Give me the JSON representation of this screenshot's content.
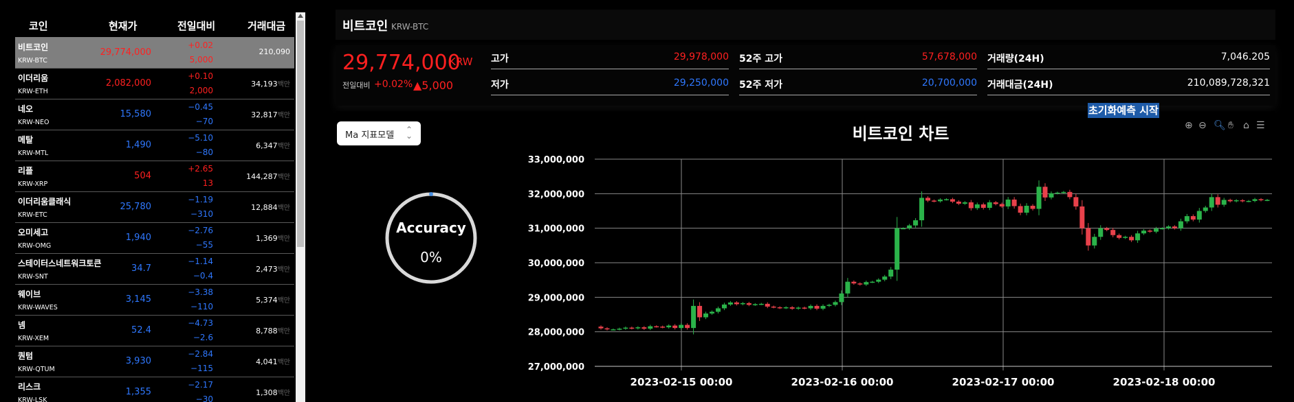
{
  "coin_list": {
    "headers": [
      "코인",
      "현재가",
      "전일대비",
      "거래대금"
    ],
    "volume_unit": "백만",
    "rows": [
      {
        "name": "비트코인",
        "code": "KRW-BTC",
        "price": "29,774,000",
        "pct": "+0.02",
        "chg": "5,000",
        "vol": "210,090",
        "dir": "up",
        "selected": true,
        "unit": ""
      },
      {
        "name": "이더리움",
        "code": "KRW-ETH",
        "price": "2,082,000",
        "pct": "+0.10",
        "chg": "2,000",
        "vol": "34,193",
        "dir": "up",
        "unit": "백만"
      },
      {
        "name": "네오",
        "code": "KRW-NEO",
        "price": "15,580",
        "pct": "−0.45",
        "chg": "−70",
        "vol": "32,817",
        "dir": "dn",
        "unit": "백만"
      },
      {
        "name": "메탈",
        "code": "KRW-MTL",
        "price": "1,490",
        "pct": "−5.10",
        "chg": "−80",
        "vol": "6,347",
        "dir": "dn",
        "unit": "백만"
      },
      {
        "name": "리플",
        "code": "KRW-XRP",
        "price": "504",
        "pct": "+2.65",
        "chg": "13",
        "vol": "144,287",
        "dir": "up",
        "unit": "백만"
      },
      {
        "name": "이더리움클래식",
        "code": "KRW-ETC",
        "price": "25,780",
        "pct": "−1.19",
        "chg": "−310",
        "vol": "12,884",
        "dir": "dn",
        "unit": "백만"
      },
      {
        "name": "오미세고",
        "code": "KRW-OMG",
        "price": "1,940",
        "pct": "−2.76",
        "chg": "−55",
        "vol": "1,369",
        "dir": "dn",
        "unit": "백만"
      },
      {
        "name": "스테이터스네트워크토큰",
        "code": "KRW-SNT",
        "price": "34.7",
        "pct": "−1.14",
        "chg": "−0.4",
        "vol": "2,473",
        "dir": "dn",
        "unit": "백만"
      },
      {
        "name": "웨이브",
        "code": "KRW-WAVES",
        "price": "3,145",
        "pct": "−3.38",
        "chg": "−110",
        "vol": "5,374",
        "dir": "dn",
        "unit": "백만"
      },
      {
        "name": "넴",
        "code": "KRW-XEM",
        "price": "52.4",
        "pct": "−4.73",
        "chg": "−2.6",
        "vol": "8,788",
        "dir": "dn",
        "unit": "백만"
      },
      {
        "name": "퀀텀",
        "code": "KRW-QTUM",
        "price": "3,930",
        "pct": "−2.84",
        "chg": "−115",
        "vol": "4,041",
        "dir": "dn",
        "unit": "백만"
      },
      {
        "name": "리스크",
        "code": "KRW-LSK",
        "price": "1,355",
        "pct": "−2.17",
        "chg": "−30",
        "vol": "1,308",
        "dir": "dn",
        "unit": "백만"
      }
    ]
  },
  "header": {
    "title": "비트코인",
    "subtitle": "KRW-BTC"
  },
  "summary": {
    "price": "29,774,000",
    "unit": "KRW",
    "delta_label": "전일대비",
    "delta_pct": "+0.02%",
    "delta_val": "▲5,000",
    "high_label": "고가",
    "high": "29,978,000",
    "low_label": "저가",
    "low": "29,250,000",
    "high52_label": "52주 고가",
    "high52": "57,678,000",
    "low52_label": "52주 저가",
    "low52": "20,700,000",
    "vol_label": "거래량(24H)",
    "vol": "7,046.205",
    "amt_label": "거래대금(24H)",
    "amt": "210,089,728,321"
  },
  "init_button": {
    "part1": "초기화",
    "part2": "예측 시작"
  },
  "ma_select": {
    "value": "Ma 지표모델"
  },
  "accuracy": {
    "title": "Accuracy",
    "value": "0%",
    "fraction": 0
  },
  "colors": {
    "up": "#ff2020",
    "down": "#2f78ff",
    "candle_up": "#2bb34a",
    "candle_down": "#e8414b"
  },
  "chart_data": {
    "type": "candlestick",
    "title": "비트코인 차트",
    "ylim": [
      27000000,
      33000000
    ],
    "yticks": [
      "27,000,000",
      "28,000,000",
      "29,000,000",
      "30,000,000",
      "31,000,000",
      "32,000,000",
      "33,000,000"
    ],
    "xticks": [
      "2023-02-15 00:00",
      "2023-02-16 00:00",
      "2023-02-17 00:00",
      "2023-02-18 00:00"
    ],
    "grid": true,
    "close": [
      28100000,
      28070000,
      28070000,
      28090000,
      28120000,
      28100000,
      28130000,
      28090000,
      28160000,
      28150000,
      28130000,
      28180000,
      28110000,
      28200000,
      28110000,
      28750000,
      28420000,
      28530000,
      28580000,
      28680000,
      28790000,
      28850000,
      28800000,
      28830000,
      28780000,
      28800000,
      28810000,
      28730000,
      28710000,
      28690000,
      28710000,
      28670000,
      28700000,
      28680000,
      28750000,
      28670000,
      28750000,
      28780000,
      28860000,
      29110000,
      29450000,
      29400000,
      29370000,
      29440000,
      29450000,
      29510000,
      29600000,
      29800000,
      31000000,
      31000000,
      31080000,
      31230000,
      31880000,
      31800000,
      31780000,
      31830000,
      31840000,
      31770000,
      31710000,
      31750000,
      31580000,
      31690000,
      31590000,
      31750000,
      31700000,
      31630000,
      31830000,
      31640000,
      31450000,
      31650000,
      31560000,
      32200000,
      31890000,
      32010000,
      32030000,
      32050000,
      31900000,
      31630000,
      31000000,
      30500000,
      30750000,
      31000000,
      30950000,
      30800000,
      30720000,
      30750000,
      30650000,
      30850000,
      30930000,
      30900000,
      30990000,
      31000000,
      31050000,
      31000000,
      31200000,
      31350000,
      31250000,
      31500000,
      31600000,
      31900000,
      31680000,
      31820000,
      31780000,
      31810000,
      31780000,
      31790000,
      31840000,
      31810000,
      31820000
    ],
    "open_first": 28150000
  }
}
